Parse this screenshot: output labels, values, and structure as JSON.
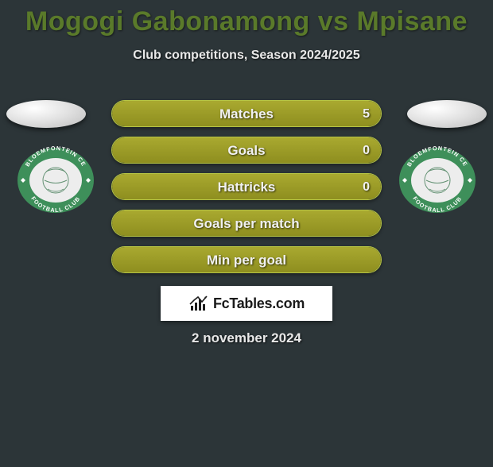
{
  "title": "Mogogi Gabonamong vs Mpisane",
  "subtitle": "Club competitions, Season 2024/2025",
  "date": "2 november 2024",
  "brand": "FcTables.com",
  "colors": {
    "bar_fill": "#9a9a27",
    "bar_border": "#b6c545",
    "title_color": "#5a7a2a",
    "background": "#2c3538",
    "club_ring": "#3e8f5a",
    "club_inner": "#ededed"
  },
  "stats": [
    {
      "label": "Matches",
      "fill_pct": 100,
      "value_right": "5"
    },
    {
      "label": "Goals",
      "fill_pct": 100,
      "value_right": "0"
    },
    {
      "label": "Hattricks",
      "fill_pct": 100,
      "value_right": "0"
    },
    {
      "label": "Goals per match",
      "fill_pct": 100,
      "value_right": ""
    },
    {
      "label": "Min per goal",
      "fill_pct": 100,
      "value_right": ""
    }
  ],
  "club": {
    "name": "Bloemfontein Celtic Football Club",
    "top_text": "BLOEMFONTEIN CE",
    "bottom_text": "FOOTBALL CLUB"
  }
}
